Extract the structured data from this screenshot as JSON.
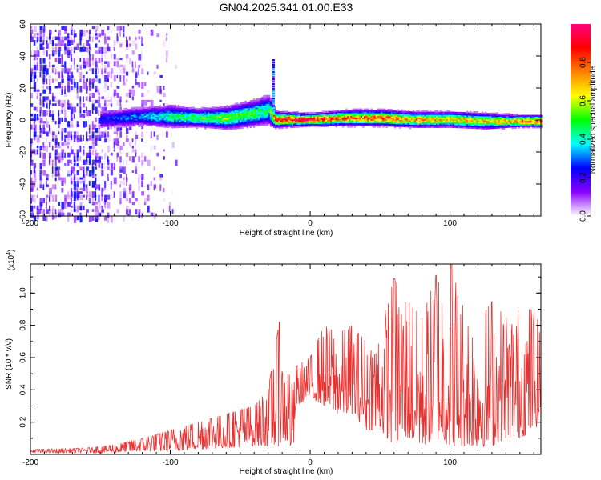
{
  "title": "GN04.2025.341.01.00.E33",
  "chart_data": [
    {
      "type": "heatmap",
      "name": "spectrogram",
      "xlabel": "Height of straight line (km)",
      "ylabel": "Frequency (Hz)",
      "xlim": [
        -200,
        165
      ],
      "ylim": [
        -60,
        60
      ],
      "xticks": [
        -200,
        -100,
        0,
        100
      ],
      "xtick_labels": [
        "-200",
        "-100",
        "0",
        "100"
      ],
      "yticks": [
        -60,
        -40,
        -20,
        0,
        20,
        40,
        60
      ],
      "ytick_labels": [
        "-60",
        "-40",
        "-20",
        "0",
        "20",
        "40",
        "60"
      ],
      "colorbar": {
        "label": "Normalized spectral amplitude",
        "range": [
          0,
          1
        ],
        "ticks": [
          0.0,
          0.2,
          0.4,
          0.6,
          0.8
        ],
        "tick_labels": [
          "0.0",
          "0.2",
          "0.4",
          "0.6",
          "0.8"
        ],
        "colormap": [
          "#ffffff",
          "#8a00ff",
          "#0000ff",
          "#00ffff",
          "#00ff00",
          "#ffff00",
          "#ff8000",
          "#ff0000",
          "#ff0080"
        ]
      },
      "ridge": {
        "description": "main frequency band near 0 Hz",
        "x": [
          -150,
          -120,
          -100,
          -80,
          -60,
          -40,
          -30,
          -25,
          0,
          25,
          50,
          75,
          100,
          125,
          150,
          165
        ],
        "center_hz": [
          0,
          2,
          2,
          1,
          1,
          4,
          6,
          0,
          0,
          1,
          1,
          0,
          0,
          -1,
          -1,
          -1
        ],
        "halfwidth_hz": [
          5,
          5,
          6,
          5,
          6,
          7,
          8,
          4,
          3,
          4,
          4,
          4,
          4,
          4,
          3,
          3
        ],
        "peak_amplitude": [
          0.25,
          0.35,
          0.45,
          0.5,
          0.55,
          0.5,
          0.45,
          0.9,
          0.95,
          0.8,
          0.85,
          0.75,
          0.7,
          0.7,
          0.8,
          0.85
        ]
      },
      "noise_region": {
        "x_range": [
          -200,
          -110
        ],
        "amplitude": "0.0-0.2"
      }
    },
    {
      "type": "line",
      "name": "snr",
      "color": "#e8302f",
      "xlabel": "Height of straight line (km)",
      "ylabel": "SNR (10 * v/v)",
      "y_multiplier": "(x10",
      "y_multiplier_exp": "4",
      "y_multiplier_close": ")",
      "xlim": [
        -200,
        165
      ],
      "ylim": [
        0,
        1.18
      ],
      "xticks": [
        -200,
        -100,
        0,
        100
      ],
      "xtick_labels": [
        "-200",
        "-100",
        "0",
        "100"
      ],
      "yticks": [
        0.2,
        0.4,
        0.6,
        0.8,
        1.0
      ],
      "ytick_labels": [
        "0.2",
        "0.4",
        "0.6",
        "0.8",
        "1.0"
      ],
      "envelope": {
        "x": [
          -200,
          -160,
          -140,
          -120,
          -100,
          -80,
          -60,
          -40,
          -30,
          -22,
          -20,
          -15,
          -12,
          -10,
          0,
          10,
          20,
          30,
          40,
          50,
          60,
          70,
          80,
          90,
          100,
          110,
          120,
          130,
          140,
          150,
          160,
          165
        ],
        "low": [
          0.01,
          0.01,
          0.01,
          0.02,
          0.02,
          0.03,
          0.04,
          0.05,
          0.05,
          0.05,
          0.1,
          0.05,
          0.02,
          0.3,
          0.35,
          0.3,
          0.25,
          0.25,
          0.15,
          0.15,
          0.05,
          0.1,
          0.05,
          0.1,
          0.05,
          0.05,
          0.05,
          0.05,
          0.1,
          0.1,
          0.15,
          0.2
        ],
        "high": [
          0.03,
          0.04,
          0.06,
          0.1,
          0.15,
          0.2,
          0.25,
          0.3,
          0.4,
          0.82,
          0.5,
          0.5,
          0.4,
          0.55,
          0.6,
          0.8,
          0.75,
          0.8,
          0.7,
          0.78,
          1.09,
          0.95,
          0.85,
          1.11,
          1.18,
          0.9,
          0.82,
          0.95,
          0.85,
          0.9,
          0.9,
          0.78
        ]
      },
      "notable_peaks": [
        {
          "x": -22,
          "y": 0.82
        },
        {
          "x": 60,
          "y": 1.09
        },
        {
          "x": 90,
          "y": 1.11
        },
        {
          "x": 101,
          "y": 1.18
        }
      ]
    }
  ]
}
